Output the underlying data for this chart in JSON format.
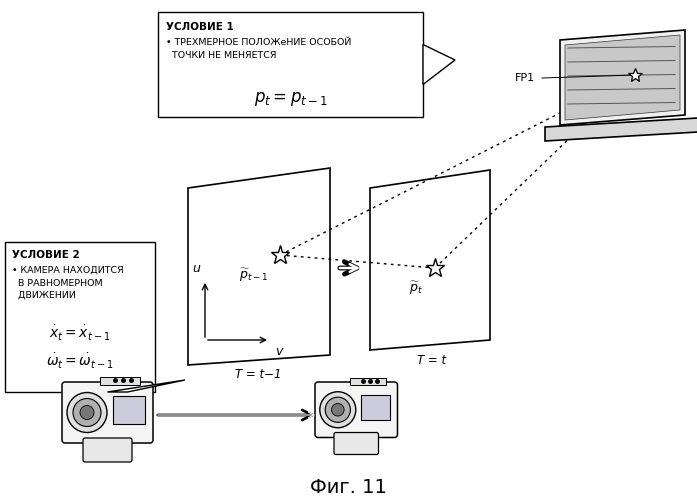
{
  "bg_color": "#ffffff",
  "title": "Фиг. 11",
  "title_fontsize": 14,
  "box1_title": "УСЛОВИЕ 1",
  "box1_bullet": "• ТРЕХМЕРНОЕ ПОЛОЖеНИЕ ОСОБОЙ\n  ТОЧКИ НЕ МЕНЯЕТСЯ",
  "box1_formula": "$p_t = p_{t-1}$",
  "box2_title": "УСЛОВИЕ 2",
  "box2_bullet": "• КАМЕРА НАХОДИТСЯ\n  В РАВНОМЕРНОМ\n  ДВИЖЕНИИ",
  "box2_formula1": "$\\dot{x}_t = \\dot{x}_{t-1}$",
  "box2_formula2": "$\\dot{\\omega}_t = \\dot{\\omega}_{t-1}$",
  "label_t1": "T = t−1",
  "label_t": "T = t",
  "fp1_label": "FP1"
}
